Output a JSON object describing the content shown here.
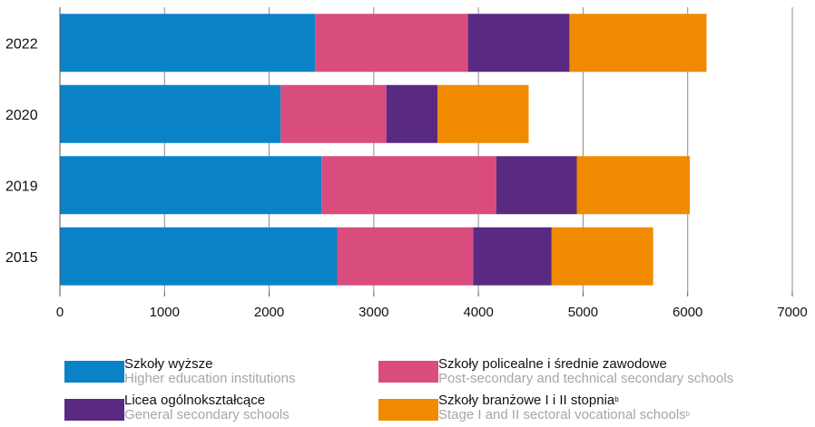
{
  "chart_data": {
    "type": "bar",
    "orientation": "horizontal",
    "stacked": true,
    "categories": [
      "2022",
      "2020",
      "2019",
      "2015"
    ],
    "series": [
      {
        "name": "Szkoły wyższe",
        "name_en": "Higher education institutions",
        "color": "#0a82c8",
        "values": [
          2440,
          2110,
          2500,
          2650
        ]
      },
      {
        "name": "Szkoły policealne i średnie zawodowe",
        "name_en": "Post-secondary and technical secondary schools",
        "color": "#d94c7e",
        "values": [
          1460,
          1010,
          1670,
          1300
        ]
      },
      {
        "name": "Licea ogólnokształcące",
        "name_en": "General secondary schools",
        "color": "#5a2a82",
        "values": [
          970,
          490,
          770,
          750
        ]
      },
      {
        "name": "Szkoły branżowe I i II stopnia",
        "name_en": "Stage I and II sectoral vocational schools",
        "footnote": "b",
        "color": "#f08a00",
        "values": [
          1310,
          870,
          1080,
          970
        ]
      }
    ],
    "xlim": [
      0,
      7000
    ],
    "xticks": [
      0,
      1000,
      2000,
      3000,
      4000,
      5000,
      6000,
      7000
    ],
    "grid": true,
    "legend_position": "bottom"
  }
}
